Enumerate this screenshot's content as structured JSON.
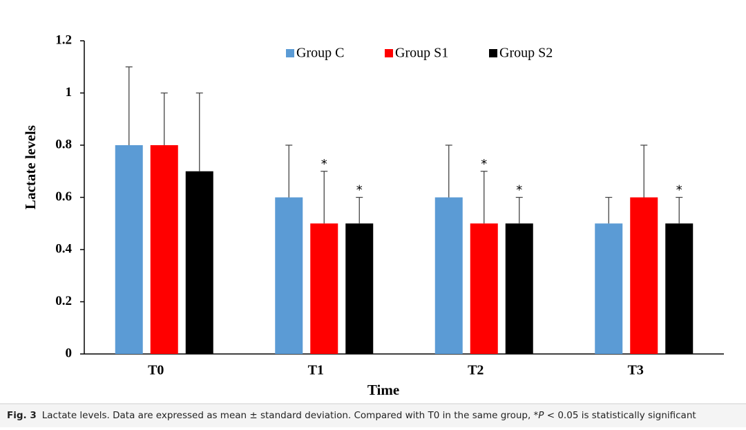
{
  "chart_data": {
    "type": "bar",
    "y_label": "Lactate levels",
    "x_label": "Time",
    "categories": [
      "T0",
      "T1",
      "T2",
      "T3"
    ],
    "series": [
      {
        "name": "Group C",
        "color": "#5b9bd5",
        "values": [
          0.8,
          0.6,
          0.6,
          0.5
        ],
        "errors": [
          0.3,
          0.2,
          0.2,
          0.1
        ],
        "annotations": [
          null,
          null,
          null,
          null
        ]
      },
      {
        "name": "Group S1",
        "color": "#ff0000",
        "values": [
          0.8,
          0.5,
          0.5,
          0.6
        ],
        "errors": [
          0.2,
          0.2,
          0.2,
          0.2
        ],
        "annotations": [
          null,
          "*",
          "*",
          null
        ]
      },
      {
        "name": "Group S2",
        "color": "#000000",
        "values": [
          0.7,
          0.5,
          0.5,
          0.5
        ],
        "errors": [
          0.3,
          0.1,
          0.1,
          0.1
        ],
        "annotations": [
          null,
          "*",
          "*",
          "*"
        ]
      }
    ],
    "ylim": [
      0,
      1.2
    ],
    "yticks": [
      0,
      0.2,
      0.4,
      0.6,
      0.8,
      1,
      1.2
    ],
    "grid": false,
    "legend": "top"
  },
  "caption": {
    "label": "Fig. 3",
    "text": "Lactate levels. Data are expressed as mean ± standard deviation. Compared with T0 in the same group, *",
    "italic": "P",
    "text_end": " < 0.05 is statistically significant"
  }
}
